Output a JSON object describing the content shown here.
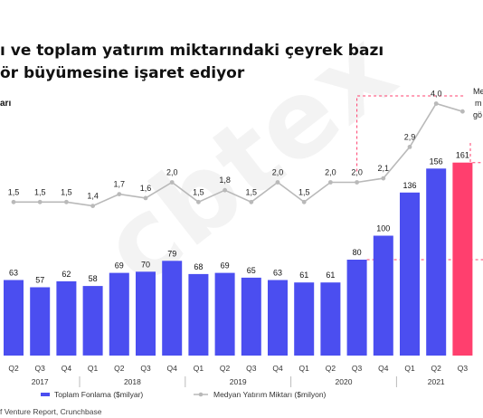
{
  "header": {
    "title_line1": "ı ve toplam yatırım miktarındaki çeyrek bazı",
    "title_line2": "ör büyümesine işaret ediyor",
    "unit_fragment": "arı"
  },
  "annotation": {
    "line1": "Me",
    "line2": "m",
    "line3": "gö"
  },
  "watermark": "cbtex",
  "source": "f Venture Report, Crunchbase",
  "colors": {
    "bar": "#4b4ef0",
    "bar_highlight": "#ff3f6e",
    "median_line": "#b9b9b9",
    "guide": "#ff3f6e"
  },
  "chart_data": {
    "type": "bar",
    "title": "",
    "categories": [
      "Q2",
      "Q3",
      "Q4",
      "Q1",
      "Q2",
      "Q3",
      "Q4",
      "Q1",
      "Q2",
      "Q3",
      "Q4",
      "Q1",
      "Q2",
      "Q3",
      "Q4",
      "Q1",
      "Q2",
      "Q3"
    ],
    "years": [
      {
        "label": "2017",
        "start": 0,
        "end": 2
      },
      {
        "label": "2018",
        "start": 3,
        "end": 6
      },
      {
        "label": "2019",
        "start": 7,
        "end": 10
      },
      {
        "label": "2020",
        "start": 11,
        "end": 14
      },
      {
        "label": "2021",
        "start": 15,
        "end": 17
      }
    ],
    "series": [
      {
        "name": "Toplam Fonlama ($milyar)",
        "type": "bar",
        "values": [
          63,
          57,
          62,
          58,
          69,
          70,
          79,
          68,
          69,
          65,
          63,
          61,
          61,
          80,
          100,
          136,
          156,
          161
        ],
        "highlight_index": 17
      },
      {
        "name": "Medyan Yatırım Miktarı ($milyon)",
        "type": "line",
        "values": [
          1.5,
          1.5,
          1.5,
          1.4,
          1.7,
          1.6,
          2.0,
          1.5,
          1.8,
          1.5,
          2.0,
          1.5,
          2.0,
          2.0,
          2.1,
          2.9,
          4.0,
          3.8
        ],
        "labels": [
          "1,5",
          "1,5",
          "1,5",
          "1,4",
          "1,7",
          "1,6",
          "2,0",
          "1,5",
          "1,8",
          "1,5",
          "2,0",
          "1,5",
          "2,0",
          "2,0",
          "2,1",
          "2,9",
          "4,0",
          ""
        ]
      }
    ],
    "legend": [
      {
        "label": "Toplam Fonlama ($milyar)",
        "symbol": "bar"
      },
      {
        "label": "Medyan Yatırım Miktarı ($milyon)",
        "symbol": "line"
      }
    ],
    "legend_position": "bottom"
  }
}
